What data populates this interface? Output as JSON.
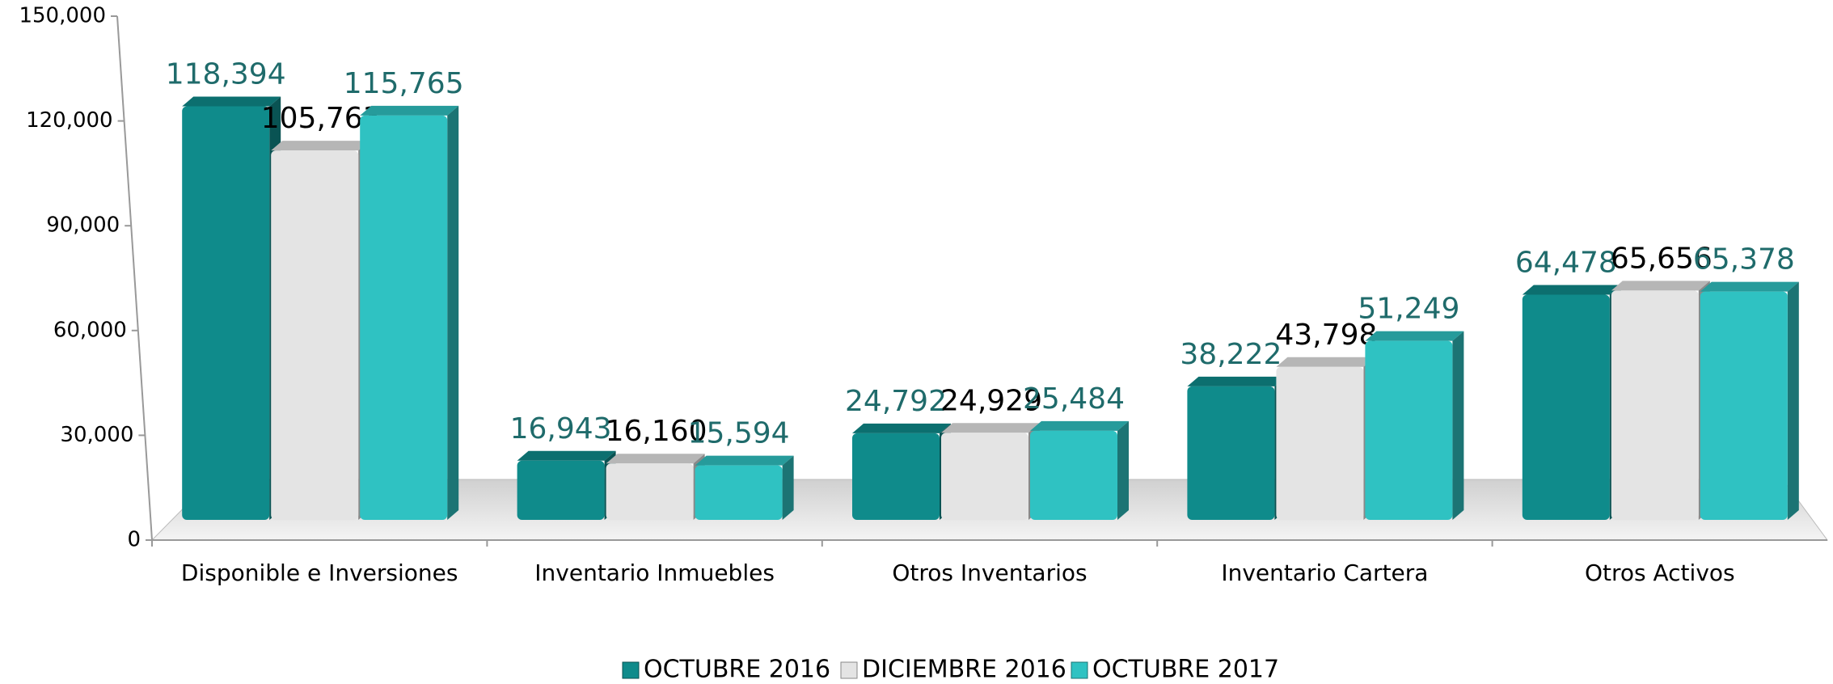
{
  "chart_data": {
    "type": "bar3d",
    "categories": [
      "Disponible e Inversiones",
      "Inventario Inmuebles",
      "Otros Inventarios",
      "Inventario Cartera",
      "Otros Activos"
    ],
    "series": [
      {
        "name": "OCTUBRE 2016",
        "color": "#0f8b8b",
        "label_color": "#1f6b6b",
        "values": [
          118394,
          16943,
          24792,
          38222,
          64478
        ],
        "value_labels": [
          "118,394",
          "16,943",
          "24,792",
          "38,222",
          "64,478"
        ]
      },
      {
        "name": "DICIEMBRE 2016",
        "color": "#e4e4e4",
        "label_color": "#000000",
        "values": [
          105763,
          16160,
          24929,
          43798,
          65656
        ],
        "value_labels": [
          "105,763",
          "16,160",
          "24,929",
          "43,798",
          "65,656"
        ]
      },
      {
        "name": "OCTUBRE 2017",
        "color": "#2fc2c2",
        "label_color": "#1f6b6b",
        "values": [
          115765,
          15594,
          25484,
          51249,
          65378
        ],
        "value_labels": [
          "115,765",
          "15,594",
          "25,484",
          "51,249",
          "65,378"
        ]
      }
    ],
    "ylim": [
      0,
      150000
    ],
    "yticks": [
      0,
      {
        "value": 30000,
        "label": "30,000"
      },
      {
        "value": 60000,
        "label": "60,000"
      },
      {
        "value": 90000,
        "label": "90,000"
      },
      {
        "value": 120000,
        "label": "120,000"
      },
      {
        "value": 150000,
        "label": "150,000"
      }
    ],
    "legend": "bottom"
  }
}
